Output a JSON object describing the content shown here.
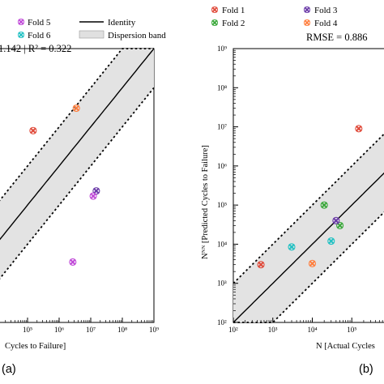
{
  "chart_data": [
    {
      "type": "scatter",
      "panel_label": "(a)",
      "metric_text": "1.142 | R² = 0.322",
      "x_scale": "log",
      "y_scale": "log",
      "xlim": [
        10000.0,
        1000000000.0
      ],
      "ylim": [
        100.0,
        1000000000.0
      ],
      "x_ticks": [
        "10⁵",
        "10⁶",
        "10⁷",
        "10⁸",
        "10⁹"
      ],
      "xlabel": "Cycles to Failure]",
      "legend": [
        {
          "label": "Fold 5",
          "color": "#c04ad8",
          "marker": "x"
        },
        {
          "label": "Fold 6",
          "color": "#22c1c3",
          "marker": "x"
        },
        {
          "label": "Identity",
          "color": "#000000",
          "marker": "line"
        },
        {
          "label": "Dispersion band",
          "color": "#e0e0e0",
          "marker": "patch"
        }
      ],
      "series": [
        {
          "color": "#e04a3a",
          "points": [
            [
              150000.0,
              8000000.0
            ]
          ]
        },
        {
          "color": "#ff7f3f",
          "points": [
            [
              3500000.0,
              30000000.0
            ]
          ]
        },
        {
          "color": "#6a3aa8",
          "points": [
            [
              15000000.0,
              230000.0
            ]
          ]
        },
        {
          "color": "#c04ad8",
          "points": [
            [
              12000000.0,
              170000.0
            ],
            [
              2700000.0,
              3500.0
            ]
          ]
        }
      ],
      "band": "identity ×/÷ 10",
      "grid": false
    },
    {
      "type": "scatter",
      "panel_label": "(b)",
      "metric_text": "RMSE = 0.886",
      "x_scale": "log",
      "y_scale": "log",
      "xlim": [
        100.0,
        1000000.0
      ],
      "ylim": [
        100.0,
        1000000000.0
      ],
      "x_ticks": [
        "10²",
        "10³",
        "10⁴",
        "10⁵"
      ],
      "y_ticks": [
        "10²",
        "10³",
        "10⁴",
        "10⁵",
        "10⁶",
        "10⁷",
        "10⁸",
        "10⁹"
      ],
      "xlabel": "N [Actual Cycles",
      "ylabel": "Nᴺᴺ [Predicted Cycles to Failure]",
      "legend": [
        {
          "label": "Fold 1",
          "color": "#e04a3a",
          "marker": "x"
        },
        {
          "label": "Fold 3",
          "color": "#6a3aa8",
          "marker": "x"
        },
        {
          "label": "Fold 2",
          "color": "#3aa83a",
          "marker": "x"
        },
        {
          "label": "Fold 4",
          "color": "#ff7f3f",
          "marker": "x"
        }
      ],
      "series": [
        {
          "color": "#e04a3a",
          "points": [
            [
              500.0,
              3000.0
            ],
            [
              150000.0,
              9000000.0
            ]
          ]
        },
        {
          "color": "#3aa83a",
          "points": [
            [
              20000.0,
              100000.0
            ],
            [
              50000.0,
              30000.0
            ]
          ]
        },
        {
          "color": "#6a3aa8",
          "points": [
            [
              40000.0,
              40000.0
            ]
          ]
        },
        {
          "color": "#ff7f3f",
          "points": [
            [
              10000.0,
              3200.0
            ]
          ]
        },
        {
          "color": "#22c1c3",
          "points": [
            [
              3000.0,
              8500.0
            ],
            [
              30000.0,
              12000.0
            ]
          ]
        }
      ],
      "band": "identity ×/÷ 10",
      "grid": false
    }
  ]
}
